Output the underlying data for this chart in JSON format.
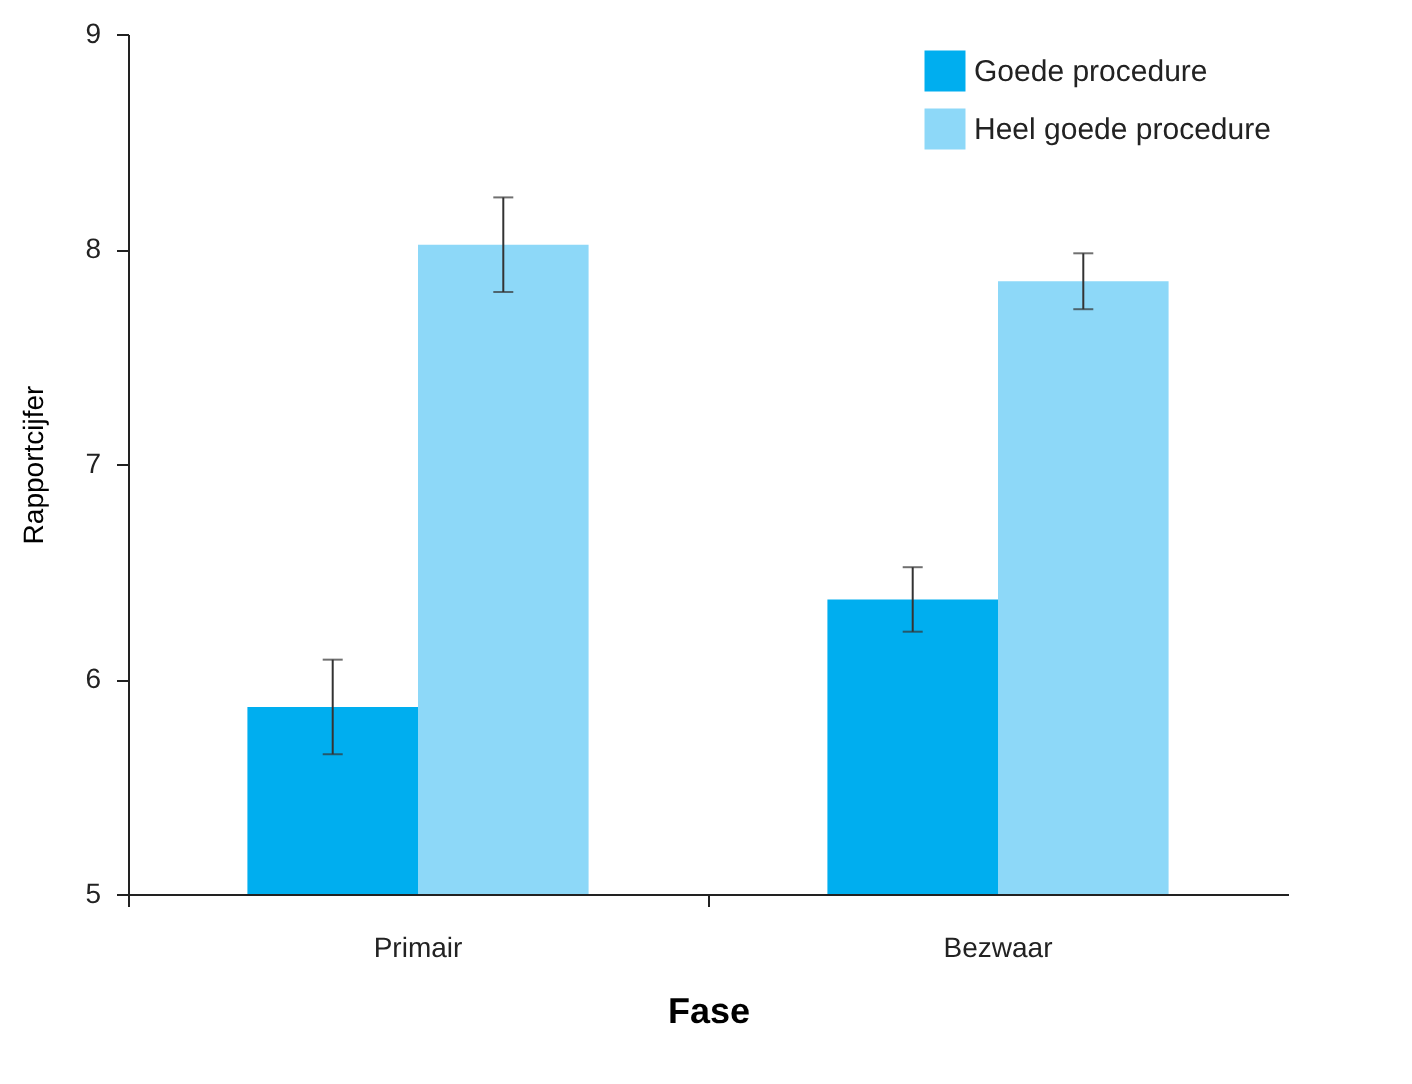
{
  "chart_data": {
    "type": "bar",
    "xlabel": "Fase",
    "ylabel": "Rapportcijfer",
    "categories": [
      "Primair",
      "Bezwaar"
    ],
    "series": [
      {
        "name": "Goede procedure",
        "color": "#00aeef",
        "values": [
          5.87,
          6.37
        ],
        "errors": [
          0.22,
          0.15
        ]
      },
      {
        "name": "Heel goede procedure",
        "color": "#8dd8f8",
        "values": [
          8.02,
          7.85
        ],
        "errors": [
          0.22,
          0.13
        ]
      }
    ],
    "ylim": [
      5,
      9
    ],
    "yticks": [
      5,
      6,
      7,
      8,
      9
    ],
    "grid": false,
    "legend": "top right"
  }
}
